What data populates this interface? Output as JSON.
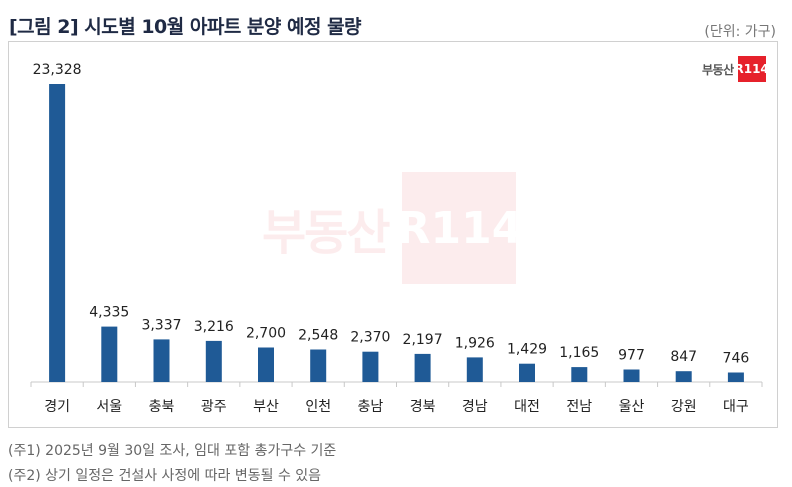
{
  "title": "[그림 2] 시도별 10월 아파트 분양 예정 물량",
  "unit": "(단위: 가구)",
  "logo": {
    "text": "부동산",
    "mark": "R114"
  },
  "notes": [
    "(주1) 2025년 9월 30일 조사, 임대 포함 총가구수 기준",
    "(주2) 상기 일정은 건설사 사정에 따라 변동될 수 있음"
  ],
  "colors": {
    "bar": "#1f5a96",
    "accent": "#e6212b"
  },
  "chart_data": {
    "type": "bar",
    "categories": [
      "경기",
      "서울",
      "충북",
      "광주",
      "부산",
      "인천",
      "충남",
      "경북",
      "경남",
      "대전",
      "전남",
      "울산",
      "강원",
      "대구"
    ],
    "values": [
      23328,
      4335,
      3337,
      3216,
      2700,
      2548,
      2370,
      2197,
      1926,
      1429,
      1165,
      977,
      847,
      746
    ],
    "value_labels": [
      "23,328",
      "4,335",
      "3,337",
      "3,216",
      "2,700",
      "2,548",
      "2,370",
      "2,197",
      "1,926",
      "1,429",
      "1,165",
      "977",
      "847",
      "746"
    ],
    "ylim": [
      0,
      23328
    ],
    "grid": false,
    "legend": "none"
  }
}
